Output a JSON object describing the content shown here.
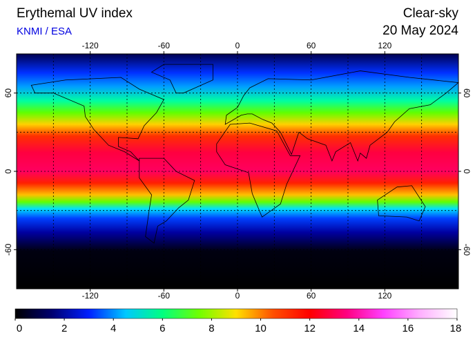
{
  "header": {
    "title": "Erythemal UV index",
    "subtitle": "KNMI / ESA",
    "mode": "Clear-sky",
    "date": "20 May 2024"
  },
  "map": {
    "xlim": [
      -180,
      180
    ],
    "ylim": [
      -90,
      90
    ],
    "xticks": [
      -120,
      -60,
      0,
      60,
      120
    ],
    "yticks": [
      -60,
      0,
      60
    ]
  },
  "colorbar": {
    "range": [
      0,
      18
    ],
    "ticks": [
      0,
      2,
      4,
      6,
      8,
      10,
      12,
      14,
      16,
      18
    ],
    "colors": [
      "#000000",
      "#000070",
      "#0020ff",
      "#00c8ff",
      "#00ff80",
      "#70ff00",
      "#ffe000",
      "#ff5000",
      "#ff0000",
      "#ff0080",
      "#ff40ff",
      "#ffb0ff",
      "#ffffff"
    ]
  }
}
